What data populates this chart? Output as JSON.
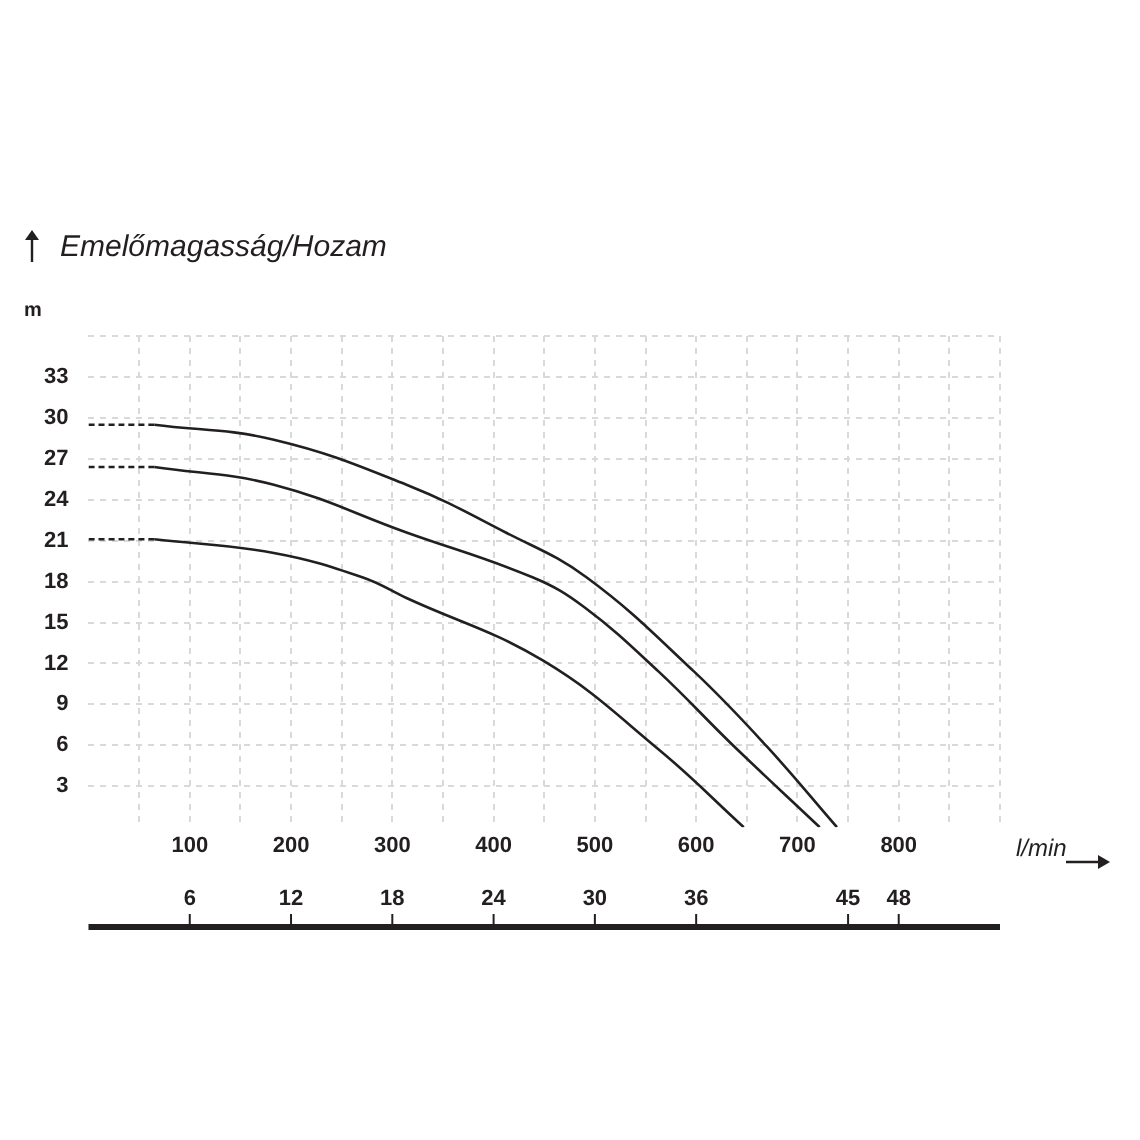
{
  "chart_data": {
    "type": "line",
    "title": "Emelőmagasság/Hozam",
    "xlabel": "l/min",
    "ylabel": "m",
    "xlim": [
      0,
      900
    ],
    "ylim": [
      0,
      36
    ],
    "xticks": [
      {
        "value": 50,
        "label": null
      },
      100,
      {
        "value": 150,
        "label": null
      },
      200,
      {
        "value": 250,
        "label": null
      },
      300,
      {
        "value": 350,
        "label": null
      },
      400,
      {
        "value": 450,
        "label": null
      },
      500,
      {
        "value": 550,
        "label": null
      },
      600,
      {
        "value": 650,
        "label": null
      },
      700,
      {
        "value": 750,
        "label": null
      },
      800,
      {
        "value": 850,
        "label": null
      },
      {
        "value": 900,
        "label": null
      }
    ],
    "yticks": [
      3,
      6,
      9,
      12,
      15,
      18,
      21,
      24,
      27,
      30,
      33,
      {
        "value": 36,
        "label": null
      }
    ],
    "x2lim": [
      0,
      54
    ],
    "x2ticks": [
      6,
      12,
      18,
      24,
      30,
      36,
      45,
      48
    ],
    "grid": true,
    "legend": false,
    "marker": "none",
    "line_style": "solid",
    "series": [
      {
        "color": "#231f20",
        "x": [
          65,
          183,
          314,
          412,
          492,
          598,
          670,
          739
        ],
        "values": [
          29.5,
          28.4,
          25.1,
          21.6,
          18.3,
          11.4,
          5.9,
          0
        ]
      },
      {
        "color": "#231f20",
        "x": [
          65,
          183,
          314,
          439,
          490,
          563,
          635,
          722
        ],
        "values": [
          26.4,
          25.1,
          21.6,
          18.3,
          16.1,
          11.4,
          6.1,
          0
        ]
      },
      {
        "color": "#231f20",
        "x": [
          65,
          183,
          271,
          314,
          449,
          563,
          647
        ],
        "values": [
          21.1,
          20.1,
          18.3,
          16.8,
          12.2,
          5.7,
          0
        ]
      },
      {
        "color": "#231f20",
        "line_style": "dashed",
        "x": [
          0,
          65
        ],
        "values": [
          29.5,
          29.5
        ]
      },
      {
        "color": "#231f20",
        "line_style": "dashed",
        "x": [
          0,
          65
        ],
        "values": [
          26.4,
          26.4
        ]
      },
      {
        "color": "#231f20",
        "line_style": "dashed",
        "x": [
          0,
          65
        ],
        "values": [
          21.1,
          21.1
        ]
      }
    ]
  }
}
